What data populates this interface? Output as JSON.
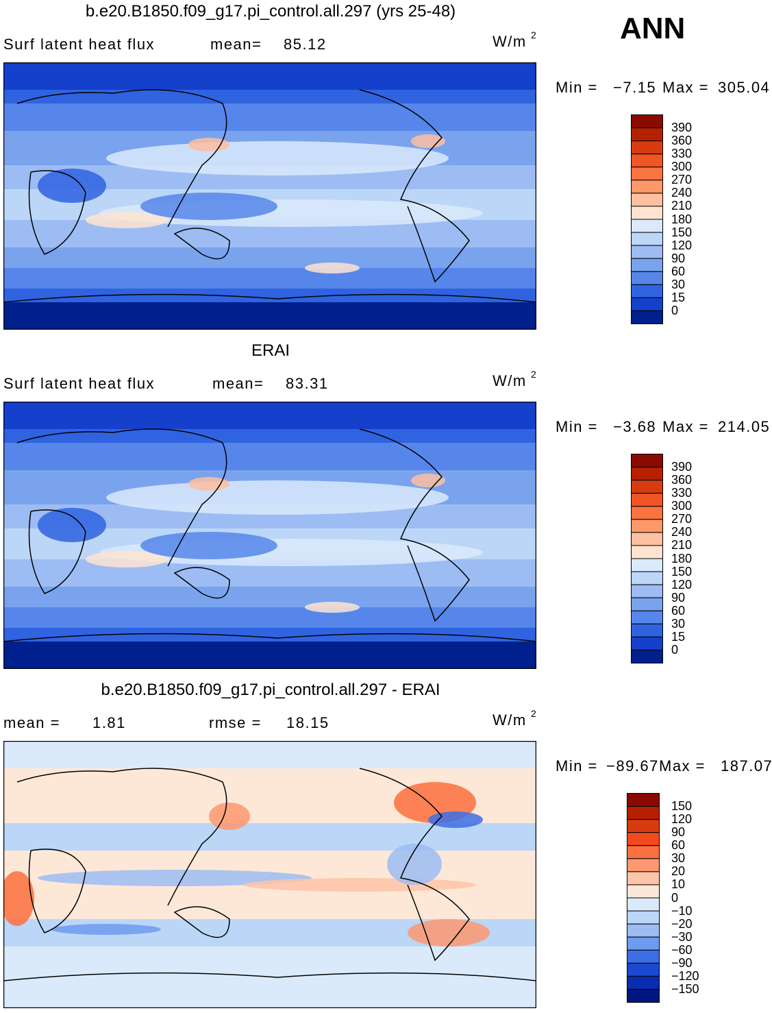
{
  "season": "ANN",
  "panels": [
    {
      "title": "b.e20.B1850.f09_g17.pi_control.all.297 (yrs 25-48)",
      "left_label": "Surf latent heat flux",
      "stat_label": "mean=",
      "stat_value": "85.12",
      "units": "W/m",
      "units_power": "2",
      "min_label": "Min =",
      "min": "−7.15",
      "max_label": "Max =",
      "max": "305.04",
      "colorbar": {
        "levels": [
          "390",
          "360",
          "330",
          "300",
          "270",
          "240",
          "210",
          "180",
          "150",
          "120",
          "90",
          "60",
          "30",
          "15",
          "0"
        ],
        "colors": [
          "#8b0a00",
          "#b52000",
          "#d93b10",
          "#f05526",
          "#fb7340",
          "#fd9868",
          "#fdc0a0",
          "#fde4d0",
          "#dbeafb",
          "#bcd6f7",
          "#9cbcf3",
          "#7aa3ee",
          "#5686ea",
          "#2f63e0",
          "#1440cc",
          "#00208e"
        ]
      }
    },
    {
      "title": "ERAI",
      "left_label": "Surf latent heat flux",
      "stat_label": "mean=",
      "stat_value": "83.31",
      "units": "W/m",
      "units_power": "2",
      "min_label": "Min =",
      "min": "−3.68",
      "max_label": "Max =",
      "max": "214.05",
      "colorbar": {
        "levels": [
          "390",
          "360",
          "330",
          "300",
          "270",
          "240",
          "210",
          "180",
          "150",
          "120",
          "90",
          "60",
          "30",
          "15",
          "0"
        ],
        "colors": [
          "#8b0a00",
          "#b52000",
          "#d93b10",
          "#f05526",
          "#fb7340",
          "#fd9868",
          "#fdc0a0",
          "#fde4d0",
          "#dbeafb",
          "#bcd6f7",
          "#9cbcf3",
          "#7aa3ee",
          "#5686ea",
          "#2f63e0",
          "#1440cc",
          "#00208e"
        ]
      }
    },
    {
      "title": "b.e20.B1850.f09_g17.pi_control.all.297 - ERAI",
      "left_label": "mean =",
      "stat_label": "rmse =",
      "stat_value": "18.15",
      "left_value": "1.81",
      "units": "W/m",
      "units_power": "2",
      "min_label": "Min =",
      "min": "−89.67",
      "max_label": "Max =",
      "max": "187.07",
      "colorbar": {
        "levels": [
          "150",
          "120",
          "90",
          "60",
          "30",
          "20",
          "10",
          "0",
          "−10",
          "−20",
          "−30",
          "−60",
          "−90",
          "−120",
          "−150"
        ],
        "colors": [
          "#8b0a00",
          "#b52000",
          "#d93b10",
          "#f04a1e",
          "#fb7040",
          "#fd9870",
          "#fdc4a8",
          "#fde8d8",
          "#dbeafb",
          "#bcd6f7",
          "#9cbcf3",
          "#6f9bee",
          "#3c6ee6",
          "#1c48d2",
          "#0a2cb0",
          "#001680"
        ]
      }
    }
  ]
}
